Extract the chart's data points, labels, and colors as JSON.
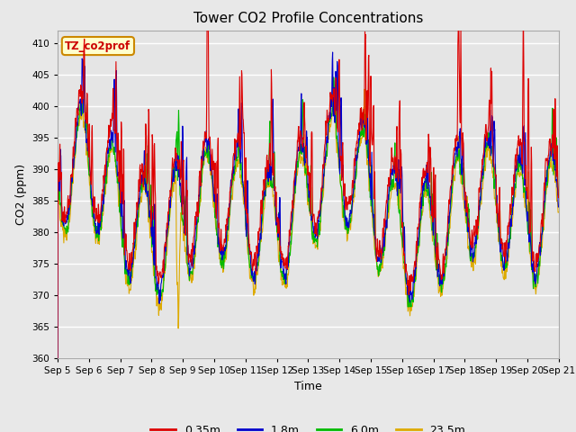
{
  "title": "Tower CO2 Profile Concentrations",
  "xlabel": "Time",
  "ylabel": "CO2 (ppm)",
  "ylim": [
    360,
    412
  ],
  "yticks": [
    360,
    365,
    370,
    375,
    380,
    385,
    390,
    395,
    400,
    405,
    410
  ],
  "series_colors": [
    "#dd0000",
    "#0000cc",
    "#00bb00",
    "#ddaa00"
  ],
  "series_labels": [
    "0.35m",
    "1.8m",
    "6.0m",
    "23.5m"
  ],
  "line_width": 0.8,
  "bg_color": "#e8e8e8",
  "plot_bg_color": "#e5e5e5",
  "grid_color": "#ffffff",
  "annotation_text": "TZ_co2prof",
  "annotation_bg": "#ffffcc",
  "annotation_border": "#cc8800",
  "n_days": 16,
  "n_per_day": 96,
  "seed": 42,
  "start_day": 5
}
